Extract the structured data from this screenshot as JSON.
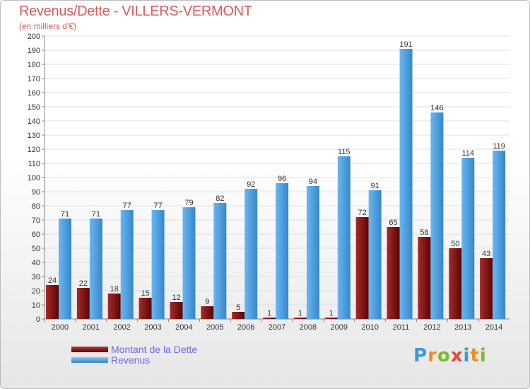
{
  "header": {
    "title": "Revenus/Dette - VILLERS-VERMONT",
    "subtitle": "(en milliers d'€)"
  },
  "chart_data": {
    "type": "bar",
    "title": "Revenus/Dette - VILLERS-VERMONT",
    "subtitle": "(en milliers d'€)",
    "categories": [
      "2000",
      "2001",
      "2002",
      "2003",
      "2004",
      "2005",
      "2006",
      "2007",
      "2008",
      "2009",
      "2010",
      "2011",
      "2012",
      "2013",
      "2014"
    ],
    "series": [
      {
        "name": "Montant de la Dette",
        "color": "#7a0f0f",
        "values": [
          24,
          22,
          18,
          15,
          12,
          9,
          5,
          1,
          1,
          1,
          72,
          65,
          58,
          50,
          43
        ]
      },
      {
        "name": "Revenus",
        "color": "#4fa3e3",
        "values": [
          71,
          71,
          77,
          77,
          79,
          82,
          92,
          96,
          94,
          115,
          91,
          191,
          146,
          114,
          119
        ]
      }
    ],
    "ylim": [
      0,
      200
    ],
    "yticks": [
      0,
      10,
      20,
      30,
      40,
      50,
      60,
      70,
      80,
      90,
      100,
      110,
      120,
      130,
      140,
      150,
      160,
      170,
      180,
      190,
      200
    ],
    "grid": true,
    "legend_position": "bottom-left"
  },
  "legend": {
    "items": [
      {
        "label": "Montant de la Dette",
        "color": "#7a0f0f"
      },
      {
        "label": "Revenus",
        "color": "#4fa3e3"
      }
    ]
  },
  "logo": {
    "letters": [
      "P",
      "r",
      "o",
      "x",
      "i",
      "t",
      "i"
    ],
    "colors": [
      "#3a9ad9",
      "#f08c1e",
      "#7dbb2a",
      "#e8473c",
      "#3a9ad9",
      "#f08c1e",
      "#7dbb2a"
    ]
  }
}
